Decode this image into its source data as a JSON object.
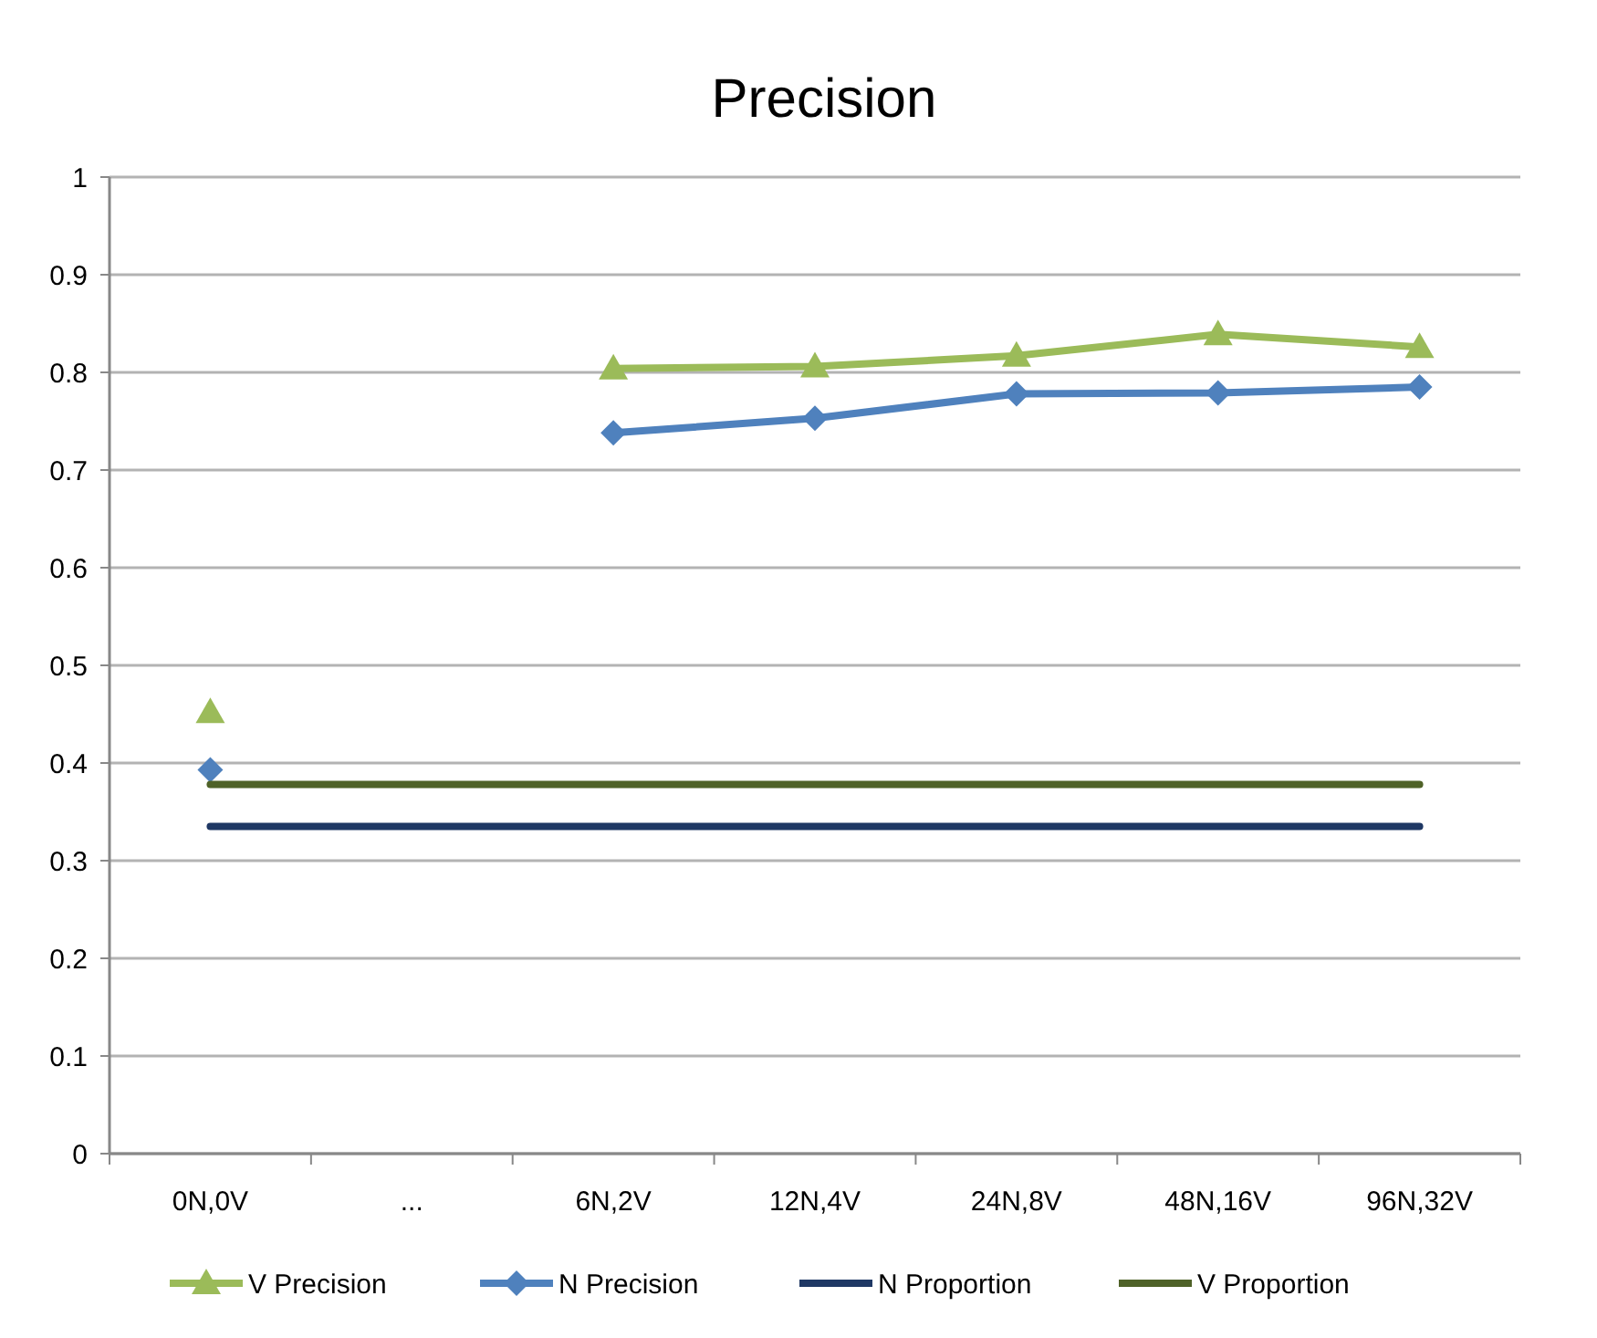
{
  "chart_data": {
    "type": "line",
    "title": "Precision",
    "categories": [
      "0N,0V",
      "...",
      "6N,2V",
      "12N,4V",
      "24N,8V",
      "48N,16V",
      "96N,32V"
    ],
    "series": [
      {
        "name": "V Precision",
        "color": "#9bbb59",
        "marker": "triangle",
        "values": [
          0.452,
          null,
          0.804,
          0.806,
          0.817,
          0.839,
          0.826
        ]
      },
      {
        "name": "N Precision",
        "color": "#4f81bd",
        "marker": "diamond",
        "values": [
          0.393,
          null,
          0.738,
          0.753,
          0.778,
          0.779,
          0.785
        ]
      },
      {
        "name": "N Proportion",
        "color": "#1f3864",
        "marker": "none",
        "values": [
          0.335,
          0.335,
          0.335,
          0.335,
          0.335,
          0.335,
          0.335
        ]
      },
      {
        "name": "V Proportion",
        "color": "#4f6228",
        "marker": "none",
        "values": [
          0.378,
          0.378,
          0.378,
          0.378,
          0.378,
          0.378,
          0.378
        ]
      }
    ],
    "ylim": [
      0,
      1
    ],
    "yticks": [
      0,
      0.1,
      0.2,
      0.3,
      0.4,
      0.5,
      0.6,
      0.7,
      0.8,
      0.9,
      1
    ],
    "grid": "y",
    "legend": "bottom"
  }
}
